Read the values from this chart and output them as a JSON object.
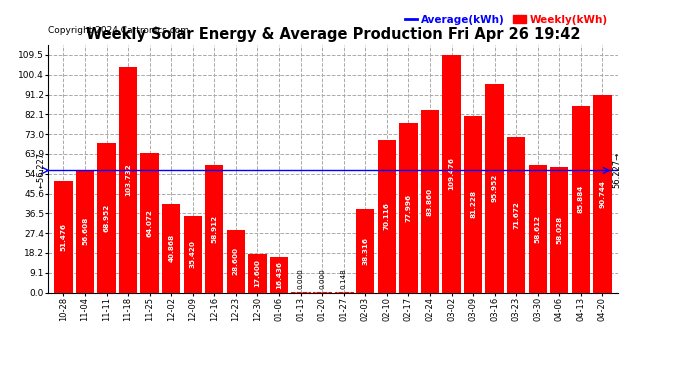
{
  "title": "Weekly Solar Energy & Average Production Fri Apr 26 19:42",
  "copyright": "Copyright 2024 Cartronics.com",
  "legend_average": "Average(kWh)",
  "legend_weekly": "Weekly(kWh)",
  "average_value": 56.227,
  "categories": [
    "10-28",
    "11-04",
    "11-11",
    "11-18",
    "11-25",
    "12-02",
    "12-09",
    "12-16",
    "12-23",
    "12-30",
    "01-06",
    "01-13",
    "01-20",
    "01-27",
    "02-03",
    "02-10",
    "02-17",
    "02-24",
    "03-02",
    "03-09",
    "03-16",
    "03-23",
    "03-30",
    "04-06",
    "04-13",
    "04-20"
  ],
  "values": [
    51.476,
    56.608,
    68.952,
    103.732,
    64.072,
    40.868,
    35.42,
    58.912,
    28.6,
    17.6,
    16.436,
    0.0,
    0.0,
    0.148,
    38.316,
    70.116,
    77.996,
    83.86,
    109.476,
    81.228,
    95.952,
    71.672,
    58.612,
    58.028,
    85.884,
    90.744
  ],
  "bar_color": "#ff0000",
  "average_line_color": "#0000ff",
  "avg_label_color": "#0000ff",
  "weekly_label_color": "#ff0000",
  "background_color": "#ffffff",
  "grid_color": "#aaaaaa",
  "title_color": "#000000",
  "yticks": [
    0.0,
    9.1,
    18.2,
    27.4,
    36.5,
    45.6,
    54.7,
    63.9,
    73.0,
    82.1,
    91.2,
    100.4,
    109.5
  ],
  "ylim": [
    0,
    114
  ],
  "bar_width": 0.85,
  "value_fontsize": 5.2,
  "xlabel_fontsize": 6.0,
  "ylabel_fontsize": 6.5,
  "title_fontsize": 10.5,
  "copyright_fontsize": 6.5
}
